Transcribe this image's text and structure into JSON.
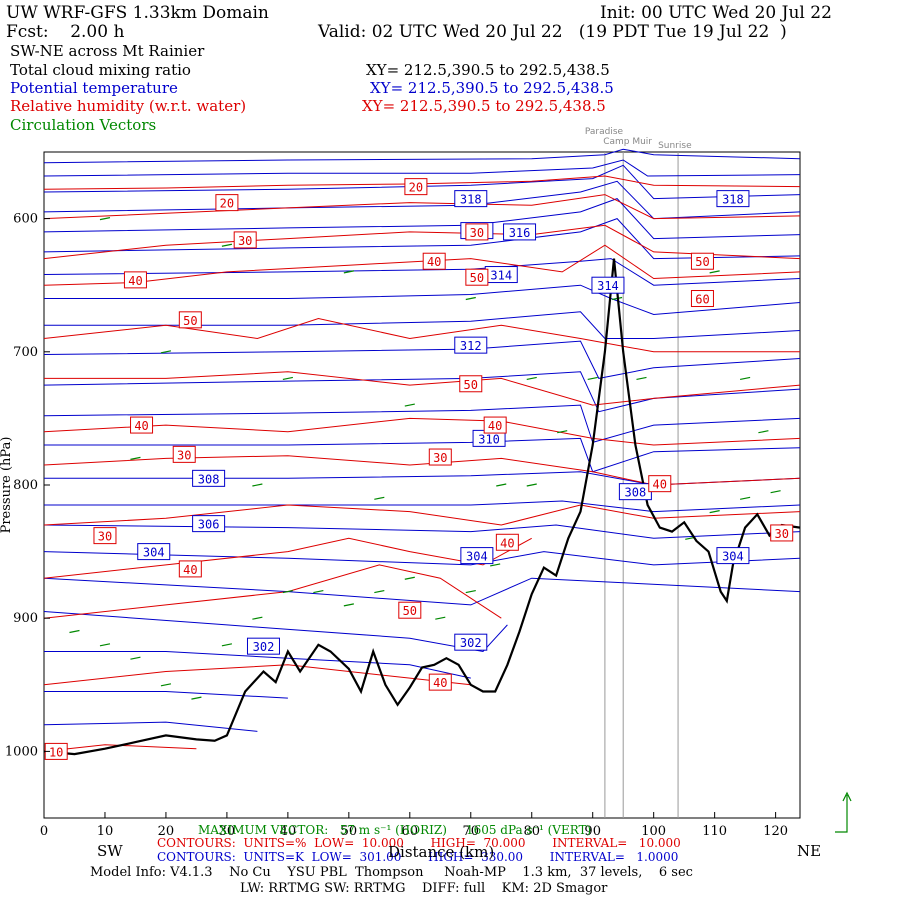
{
  "header": {
    "title_left": "UW WRF-GFS 1.33km Domain",
    "title_right": "Init: 00 UTC Wed 20 Jul 22",
    "fcst": "Fcst:    2.00 h",
    "valid": "Valid: 02 UTC Wed 20 Jul 22   (19 PDT Tue 19 Jul 22  )",
    "subtitle": "SW-NE across Mt Rainier"
  },
  "fields": [
    {
      "label": "Total cloud mixing ratio",
      "xy": "XY= 212.5,390.5 to 292.5,438.5",
      "color": "#000000"
    },
    {
      "label": "Potential temperature",
      "xy": "XY= 212.5,390.5 to 292.5,438.5",
      "color": "#0000cc"
    },
    {
      "label": "Relative humidity (w.r.t. water)",
      "xy": "XY= 212.5,390.5 to 292.5,438.5",
      "color": "#dd0000"
    },
    {
      "label": "Circulation Vectors",
      "xy": "",
      "color": "#008800"
    }
  ],
  "landmarks": [
    {
      "name": "Paradise",
      "x": 92
    },
    {
      "name": "Camp Muir",
      "x": 95
    },
    {
      "name": "Sunrise",
      "x": 104
    }
  ],
  "footer": {
    "sw": "SW",
    "ne": "NE",
    "xlabel": "Distance (km)",
    "vector": "MAXIMUM VECTOR:   57 m s⁻¹ (HORIZ)     1605 dPa s⁻¹ (VERT)",
    "rh_contours": "CONTOURS:  UNITS=%  LOW=  10.000       HIGH=  70.000       INTERVAL=   10.000",
    "th_contours": "CONTOURS:  UNITS=K  LOW=  301.00       HIGH=  330.00       INTERVAL=   1.0000",
    "model_info": "Model Info: V4.1.3    No Cu    YSU PBL  Thompson     Noah-MP    1.3 km,  37 levels,    6 sec",
    "physics": "LW: RRTMG SW: RRTMG    DIFF: full    KM: 2D Smagor"
  },
  "chart_data": {
    "type": "line",
    "title": "SW-NE across Mt Rainier",
    "xlabel": "Distance (km)",
    "ylabel": "Pressure (hPa)",
    "xlim": [
      0,
      124
    ],
    "ylim": [
      1050,
      550
    ],
    "y_reversed": true,
    "xticks": [
      0,
      10,
      20,
      30,
      40,
      50,
      60,
      70,
      80,
      90,
      100,
      110,
      120
    ],
    "yticks": [
      600,
      700,
      800,
      900,
      1000
    ],
    "terrain": {
      "color": "#000000",
      "x": [
        0,
        5,
        10,
        15,
        20,
        25,
        28,
        30,
        33,
        36,
        38,
        40,
        42,
        45,
        47,
        50,
        52,
        54,
        56,
        58,
        60,
        62,
        64,
        66,
        68,
        70,
        72,
        74,
        76,
        78,
        80,
        82,
        84,
        86,
        88,
        90,
        92,
        93.5,
        95,
        97,
        99,
        101,
        103,
        105,
        107,
        109,
        111,
        112,
        113,
        115,
        117,
        119,
        121,
        124
      ],
      "y": [
        1000,
        1002,
        998,
        993,
        988,
        991,
        992,
        988,
        955,
        940,
        948,
        925,
        940,
        920,
        925,
        938,
        955,
        925,
        950,
        965,
        952,
        937,
        935,
        930,
        935,
        950,
        955,
        955,
        935,
        910,
        882,
        862,
        868,
        840,
        820,
        770,
        700,
        630,
        700,
        770,
        815,
        832,
        835,
        828,
        842,
        850,
        880,
        887,
        860,
        832,
        822,
        838,
        830,
        832
      ]
    },
    "theta_labels": [
      {
        "value": "318",
        "x": 70,
        "y": 585
      },
      {
        "value": "318",
        "x": 113,
        "y": 585
      },
      {
        "value": "316",
        "x": 78,
        "y": 610
      },
      {
        "value": "316",
        "x": 71,
        "y": 609
      },
      {
        "value": "314",
        "x": 75,
        "y": 642
      },
      {
        "value": "314",
        "x": 92.5,
        "y": 650
      },
      {
        "value": "312",
        "x": 70,
        "y": 695
      },
      {
        "value": "310",
        "x": 73,
        "y": 765
      },
      {
        "value": "308",
        "x": 27,
        "y": 795
      },
      {
        "value": "308",
        "x": 97,
        "y": 805
      },
      {
        "value": "306",
        "x": 27,
        "y": 829
      },
      {
        "value": "304",
        "x": 18,
        "y": 850
      },
      {
        "value": "304",
        "x": 71,
        "y": 853
      },
      {
        "value": "304",
        "x": 113,
        "y": 853
      },
      {
        "value": "302",
        "x": 70,
        "y": 918
      },
      {
        "value": "302",
        "x": 36,
        "y": 921
      }
    ],
    "rh_labels": [
      {
        "value": "20",
        "x": 61,
        "y": 576
      },
      {
        "value": "20",
        "x": 30,
        "y": 588
      },
      {
        "value": "30",
        "x": 33,
        "y": 616
      },
      {
        "value": "30",
        "x": 71,
        "y": 610
      },
      {
        "value": "40",
        "x": 64,
        "y": 632
      },
      {
        "value": "40",
        "x": 15,
        "y": 646
      },
      {
        "value": "50",
        "x": 71,
        "y": 644
      },
      {
        "value": "50",
        "x": 24,
        "y": 676
      },
      {
        "value": "50",
        "x": 108,
        "y": 632
      },
      {
        "value": "60",
        "x": 108,
        "y": 660
      },
      {
        "value": "50",
        "x": 70,
        "y": 724
      },
      {
        "value": "40",
        "x": 16,
        "y": 755
      },
      {
        "value": "40",
        "x": 74,
        "y": 755
      },
      {
        "value": "30",
        "x": 23,
        "y": 777
      },
      {
        "value": "30",
        "x": 65,
        "y": 779
      },
      {
        "value": "40",
        "x": 101,
        "y": 799
      },
      {
        "value": "30",
        "x": 10,
        "y": 838
      },
      {
        "value": "40",
        "x": 76,
        "y": 843
      },
      {
        "value": "40",
        "x": 24,
        "y": 863
      },
      {
        "value": "50",
        "x": 60,
        "y": 894
      },
      {
        "value": "40",
        "x": 65,
        "y": 948
      },
      {
        "value": "30",
        "x": 121,
        "y": 836
      },
      {
        "value": "10",
        "x": 2,
        "y": 1000
      }
    ],
    "theta_lines": [
      {
        "x": [
          0,
          40,
          80,
          92,
          95,
          100,
          124
        ],
        "y": [
          558,
          556,
          555,
          552,
          548,
          552,
          555
        ]
      },
      {
        "x": [
          0,
          40,
          70,
          90,
          95,
          99,
          124
        ],
        "y": [
          568,
          566,
          566,
          562,
          556,
          568,
          567
        ]
      },
      {
        "x": [
          0,
          40,
          70,
          90,
          95,
          100,
          124
        ],
        "y": [
          580,
          578,
          575,
          570,
          560,
          585,
          582
        ]
      },
      {
        "x": [
          0,
          40,
          70,
          88,
          94,
          100,
          124
        ],
        "y": [
          595,
          592,
          590,
          580,
          572,
          600,
          595
        ]
      },
      {
        "x": [
          0,
          40,
          70,
          88,
          94,
          100,
          124
        ],
        "y": [
          610,
          607,
          605,
          595,
          585,
          615,
          612
        ]
      },
      {
        "x": [
          0,
          40,
          70,
          88,
          94,
          100,
          124
        ],
        "y": [
          625,
          622,
          620,
          610,
          600,
          630,
          628
        ]
      },
      {
        "x": [
          0,
          40,
          70,
          88,
          93,
          100,
          124
        ],
        "y": [
          642,
          640,
          638,
          632,
          630,
          650,
          645
        ]
      },
      {
        "x": [
          0,
          40,
          70,
          88,
          93,
          100,
          124
        ],
        "y": [
          660,
          660,
          657,
          650,
          660,
          672,
          663
        ]
      },
      {
        "x": [
          0,
          40,
          70,
          88,
          92,
          100,
          124
        ],
        "y": [
          680,
          680,
          677,
          670,
          690,
          690,
          684
        ]
      },
      {
        "x": [
          0,
          40,
          70,
          88,
          91,
          100,
          124
        ],
        "y": [
          702,
          700,
          698,
          692,
          720,
          712,
          705
        ]
      },
      {
        "x": [
          0,
          40,
          70,
          88,
          91,
          100,
          124
        ],
        "y": [
          725,
          722,
          720,
          715,
          745,
          735,
          728
        ]
      },
      {
        "x": [
          0,
          40,
          70,
          88,
          90,
          100,
          124
        ],
        "y": [
          748,
          746,
          744,
          740,
          768,
          755,
          750
        ]
      },
      {
        "x": [
          0,
          40,
          70,
          88,
          90,
          100,
          124
        ],
        "y": [
          770,
          770,
          768,
          765,
          790,
          775,
          772
        ]
      },
      {
        "x": [
          0,
          40,
          70,
          88,
          100,
          124
        ],
        "y": [
          795,
          795,
          793,
          790,
          800,
          795
        ]
      },
      {
        "x": [
          0,
          40,
          70,
          85,
          100,
          124
        ],
        "y": [
          815,
          815,
          815,
          812,
          820,
          815
        ]
      },
      {
        "x": [
          0,
          40,
          70,
          84,
          100,
          124
        ],
        "y": [
          830,
          832,
          835,
          830,
          840,
          835
        ]
      },
      {
        "x": [
          0,
          40,
          70,
          82,
          100,
          124
        ],
        "y": [
          850,
          855,
          860,
          850,
          860,
          855
        ]
      },
      {
        "x": [
          0,
          40,
          70,
          80,
          124
        ],
        "y": [
          870,
          880,
          890,
          870,
          880
        ]
      },
      {
        "x": [
          0,
          30,
          60,
          72,
          76
        ],
        "y": [
          895,
          905,
          915,
          925,
          905
        ]
      },
      {
        "x": [
          0,
          20,
          40,
          60,
          70
        ],
        "y": [
          925,
          925,
          930,
          935,
          945
        ]
      },
      {
        "x": [
          0,
          20,
          40
        ],
        "y": [
          955,
          955,
          960
        ]
      },
      {
        "x": [
          0,
          20,
          35
        ],
        "y": [
          980,
          978,
          985
        ]
      }
    ],
    "rh_lines": [
      {
        "x": [
          0,
          20,
          40,
          60,
          80,
          92,
          100,
          124
        ],
        "y": [
          578,
          577,
          575,
          574,
          572,
          568,
          575,
          576
        ]
      },
      {
        "x": [
          0,
          20,
          40,
          60,
          80,
          92,
          100,
          124
        ],
        "y": [
          600,
          596,
          592,
          588,
          590,
          582,
          600,
          598
        ]
      },
      {
        "x": [
          0,
          20,
          40,
          60,
          80,
          92,
          100,
          124
        ],
        "y": [
          630,
          620,
          615,
          610,
          612,
          605,
          625,
          630
        ]
      },
      {
        "x": [
          0,
          15,
          30,
          50,
          70,
          85,
          92,
          100,
          124
        ],
        "y": [
          650,
          648,
          640,
          635,
          630,
          640,
          620,
          645,
          640
        ]
      },
      {
        "x": [
          0,
          20,
          35,
          45,
          60,
          75,
          88,
          100,
          124
        ],
        "y": [
          690,
          680,
          690,
          675,
          690,
          680,
          690,
          700,
          700
        ]
      },
      {
        "x": [
          0,
          20,
          40,
          60,
          75,
          90,
          100,
          124
        ],
        "y": [
          720,
          720,
          715,
          725,
          720,
          740,
          735,
          725
        ]
      },
      {
        "x": [
          0,
          20,
          40,
          60,
          75,
          90,
          100,
          124
        ],
        "y": [
          760,
          755,
          760,
          750,
          752,
          765,
          770,
          765
        ]
      },
      {
        "x": [
          0,
          20,
          40,
          60,
          75,
          90,
          100,
          124
        ],
        "y": [
          785,
          780,
          778,
          785,
          780,
          790,
          800,
          795
        ]
      },
      {
        "x": [
          0,
          20,
          40,
          60,
          75,
          88,
          100,
          124
        ],
        "y": [
          830,
          825,
          815,
          820,
          830,
          815,
          825,
          820
        ]
      },
      {
        "x": [
          0,
          20,
          40,
          50,
          60,
          72,
          80
        ],
        "y": [
          870,
          860,
          850,
          840,
          850,
          860,
          840
        ]
      },
      {
        "x": [
          0,
          20,
          40,
          55,
          65,
          75
        ],
        "y": [
          900,
          890,
          880,
          860,
          870,
          900
        ]
      },
      {
        "x": [
          0,
          20,
          40,
          60,
          70
        ],
        "y": [
          950,
          940,
          935,
          945,
          950
        ]
      },
      {
        "x": [
          0,
          10,
          25
        ],
        "y": [
          1000,
          995,
          998
        ]
      }
    ],
    "vectors": {
      "color": "#008800",
      "points": [
        {
          "x": 5,
          "y": 910
        },
        {
          "x": 10,
          "y": 920
        },
        {
          "x": 15,
          "y": 930
        },
        {
          "x": 20,
          "y": 950
        },
        {
          "x": 25,
          "y": 960
        },
        {
          "x": 30,
          "y": 920
        },
        {
          "x": 35,
          "y": 900
        },
        {
          "x": 40,
          "y": 880
        },
        {
          "x": 45,
          "y": 880
        },
        {
          "x": 50,
          "y": 890
        },
        {
          "x": 55,
          "y": 880
        },
        {
          "x": 60,
          "y": 870
        },
        {
          "x": 65,
          "y": 900
        },
        {
          "x": 70,
          "y": 880
        },
        {
          "x": 74,
          "y": 860
        },
        {
          "x": 80,
          "y": 800
        },
        {
          "x": 85,
          "y": 760
        },
        {
          "x": 90,
          "y": 720
        },
        {
          "x": 94,
          "y": 660
        },
        {
          "x": 98,
          "y": 720
        },
        {
          "x": 102,
          "y": 800
        },
        {
          "x": 106,
          "y": 840
        },
        {
          "x": 110,
          "y": 820
        },
        {
          "x": 115,
          "y": 810
        },
        {
          "x": 120,
          "y": 805
        },
        {
          "x": 10,
          "y": 600
        },
        {
          "x": 30,
          "y": 620
        },
        {
          "x": 50,
          "y": 640
        },
        {
          "x": 70,
          "y": 660
        },
        {
          "x": 110,
          "y": 640
        },
        {
          "x": 20,
          "y": 700
        },
        {
          "x": 40,
          "y": 720
        },
        {
          "x": 60,
          "y": 740
        },
        {
          "x": 80,
          "y": 720
        },
        {
          "x": 115,
          "y": 720
        },
        {
          "x": 15,
          "y": 780
        },
        {
          "x": 35,
          "y": 800
        },
        {
          "x": 55,
          "y": 810
        },
        {
          "x": 75,
          "y": 800
        },
        {
          "x": 118,
          "y": 760
        }
      ]
    }
  }
}
